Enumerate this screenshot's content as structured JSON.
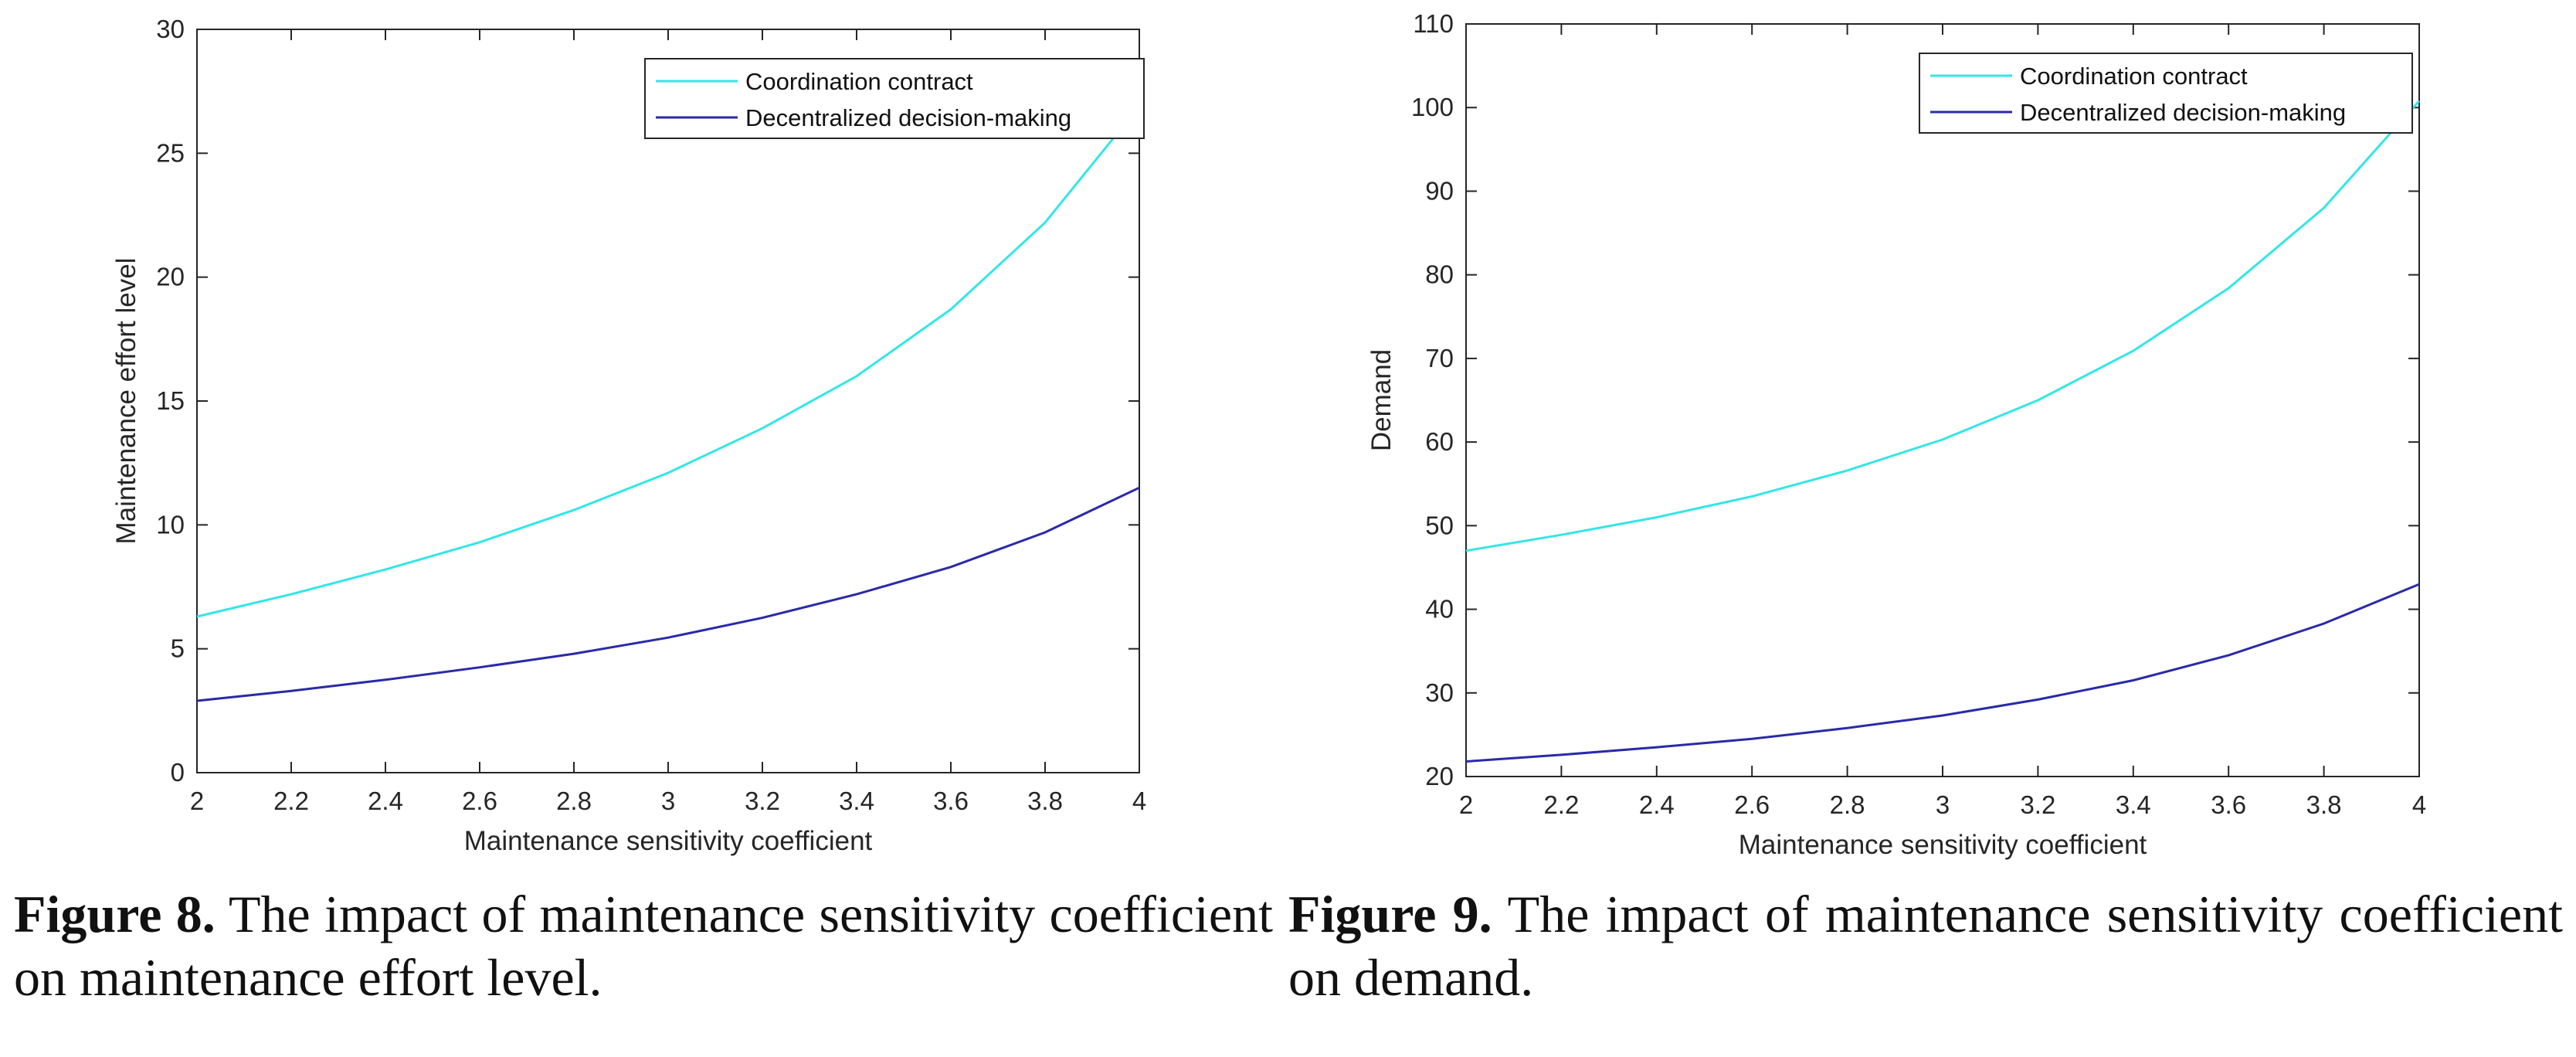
{
  "chart_data": [
    {
      "type": "line",
      "xlabel": "Maintenance sensitivity coefficient",
      "ylabel": "Maintenance effort level",
      "xlim": [
        2,
        4
      ],
      "ylim": [
        0,
        30
      ],
      "xticks": [
        2,
        2.2,
        2.4,
        2.6,
        2.8,
        3,
        3.2,
        3.4,
        3.6,
        3.8,
        4
      ],
      "yticks": [
        0,
        5,
        10,
        15,
        20,
        25,
        30
      ],
      "legend_position": "top-right",
      "grid": false,
      "x": [
        2,
        2.2,
        2.4,
        2.6,
        2.8,
        3,
        3.2,
        3.4,
        3.6,
        3.8,
        4
      ],
      "series": [
        {
          "name": "Coordination contract",
          "color": "#33e6e6",
          "values": [
            6.3,
            7.2,
            8.2,
            9.3,
            10.6,
            12.1,
            13.9,
            16.0,
            18.7,
            22.2,
            26.9
          ]
        },
        {
          "name": "Decentralized decision-making",
          "color": "#2a2aa8",
          "values": [
            2.9,
            3.3,
            3.75,
            4.25,
            4.8,
            5.45,
            6.25,
            7.2,
            8.3,
            9.7,
            11.5
          ]
        }
      ]
    },
    {
      "type": "line",
      "xlabel": "Maintenance sensitivity coefficient",
      "ylabel": "Demand",
      "xlim": [
        2,
        4
      ],
      "ylim": [
        20,
        110
      ],
      "xticks": [
        2,
        2.2,
        2.4,
        2.6,
        2.8,
        3,
        3.2,
        3.4,
        3.6,
        3.8,
        4
      ],
      "yticks": [
        20,
        30,
        40,
        50,
        60,
        70,
        80,
        90,
        100,
        110
      ],
      "legend_position": "top-right",
      "grid": false,
      "x": [
        2,
        2.2,
        2.4,
        2.6,
        2.8,
        3,
        3.2,
        3.4,
        3.6,
        3.8,
        4
      ],
      "series": [
        {
          "name": "Coordination contract",
          "color": "#33e6e6",
          "values": [
            47.0,
            48.9,
            51.0,
            53.5,
            56.6,
            60.3,
            65.0,
            70.9,
            78.4,
            88.0,
            100.8
          ]
        },
        {
          "name": "Decentralized decision-making",
          "color": "#2a2aa8",
          "values": [
            21.8,
            22.6,
            23.5,
            24.5,
            25.8,
            27.3,
            29.2,
            31.5,
            34.5,
            38.3,
            43.0
          ]
        }
      ]
    }
  ],
  "captions": [
    {
      "label": "Figure 8.",
      "text": "The impact of maintenance sensitivity coefficient on maintenance effort level."
    },
    {
      "label": "Figure 9.",
      "text": "The impact of maintenance sensitivity coefficient on demand."
    }
  ]
}
